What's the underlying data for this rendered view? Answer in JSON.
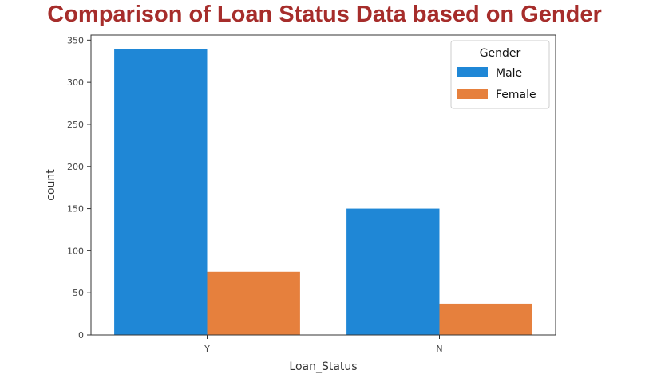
{
  "chart_data": {
    "type": "bar",
    "title": "Comparison of Loan Status Data based on Gender",
    "xlabel": "Loan_Status",
    "ylabel": "count",
    "categories": [
      "Y",
      "N"
    ],
    "series": [
      {
        "name": "Male",
        "values": [
          339,
          150
        ],
        "color": "#1f87d6"
      },
      {
        "name": "Female",
        "values": [
          75,
          37
        ],
        "color": "#e6803d"
      }
    ],
    "ylim": [
      0,
      356
    ],
    "yticks": [
      0,
      50,
      100,
      150,
      200,
      250,
      300,
      350
    ],
    "legend": {
      "title": "Gender",
      "position": "top-right"
    },
    "grid": false
  }
}
